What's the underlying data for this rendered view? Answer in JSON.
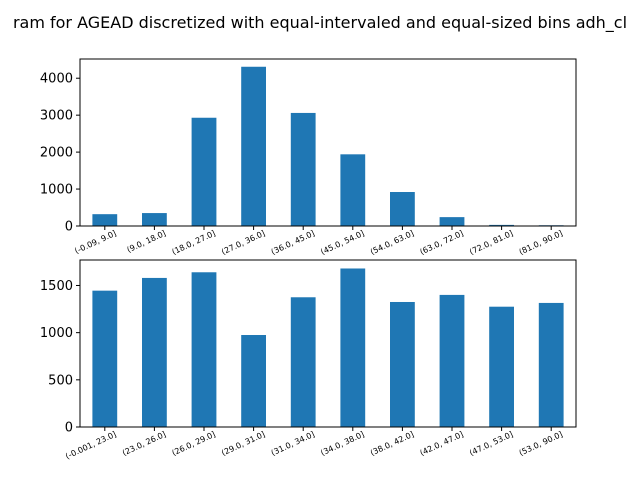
{
  "title": "ram for AGEAD discretized with equal-intervaled and equal-sized bins adh_cl",
  "colors": {
    "bar": "#1f77b4",
    "axis": "#000000",
    "background": "#ffffff"
  },
  "chart_data": [
    {
      "type": "bar",
      "categories": [
        "(-0.09, 9.0]",
        "(9.0, 18.0]",
        "(18.0, 27.0]",
        "(27.0, 36.0]",
        "(36.0, 45.0]",
        "(45.0, 54.0]",
        "(54.0, 63.0]",
        "(63.0, 72.0]",
        "(72.0, 81.0]",
        "(81.0, 90.0]"
      ],
      "values": [
        320,
        350,
        2930,
        4310,
        3060,
        1940,
        920,
        240,
        30,
        20
      ],
      "ylim": [
        0,
        4520
      ],
      "yticks": [
        0,
        1000,
        2000,
        3000,
        4000
      ],
      "grid": false,
      "xlabel": "",
      "ylabel": ""
    },
    {
      "type": "bar",
      "categories": [
        "(-0.001, 23.0]",
        "(23.0, 26.0]",
        "(26.0, 29.0]",
        "(29.0, 31.0]",
        "(31.0, 34.0]",
        "(34.0, 38.0]",
        "(38.0, 42.0]",
        "(42.0, 47.0]",
        "(47.0, 53.0]",
        "(53.0, 90.0]"
      ],
      "values": [
        1445,
        1580,
        1640,
        975,
        1375,
        1680,
        1325,
        1400,
        1275,
        1315
      ],
      "ylim": [
        0,
        1770
      ],
      "yticks": [
        0,
        500,
        1000,
        1500
      ],
      "grid": false,
      "xlabel": "",
      "ylabel": ""
    }
  ]
}
